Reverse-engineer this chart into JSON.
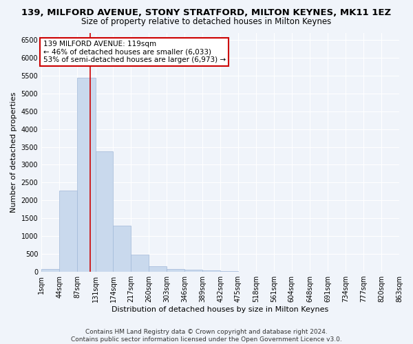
{
  "title": "139, MILFORD AVENUE, STONY STRATFORD, MILTON KEYNES, MK11 1EZ",
  "subtitle": "Size of property relative to detached houses in Milton Keynes",
  "xlabel": "Distribution of detached houses by size in Milton Keynes",
  "ylabel": "Number of detached properties",
  "bar_color": "#c9d9ed",
  "bar_edge_color": "#a0b8d8",
  "background_color": "#f0f4fa",
  "grid_color": "#ffffff",
  "property_size": 119,
  "property_line_color": "#cc0000",
  "annotation_line1": "139 MILFORD AVENUE: 119sqm",
  "annotation_line2": "← 46% of detached houses are smaller (6,033)",
  "annotation_line3": "53% of semi-detached houses are larger (6,973) →",
  "annotation_box_color": "#ffffff",
  "annotation_edge_color": "#cc0000",
  "bin_edges": [
    1,
    44,
    87,
    131,
    174,
    217,
    260,
    303,
    346,
    389,
    432,
    475,
    518,
    561,
    604,
    648,
    691,
    734,
    777,
    820,
    863
  ],
  "bar_heights": [
    80,
    2280,
    5430,
    3380,
    1300,
    475,
    165,
    85,
    55,
    35,
    20,
    10,
    5,
    3,
    2,
    2,
    1,
    1,
    1,
    1
  ],
  "ylim": [
    0,
    6700
  ],
  "yticks": [
    0,
    500,
    1000,
    1500,
    2000,
    2500,
    3000,
    3500,
    4000,
    4500,
    5000,
    5500,
    6000,
    6500
  ],
  "title_fontsize": 9.5,
  "subtitle_fontsize": 8.5,
  "label_fontsize": 8,
  "tick_fontsize": 7,
  "annotation_fontsize": 7.5,
  "footer_fontsize": 6.5
}
